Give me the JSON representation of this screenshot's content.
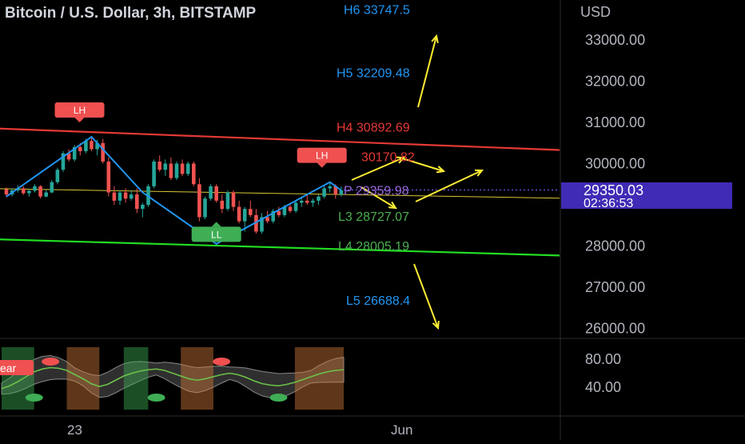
{
  "header": {
    "title": "Bitcoin / U.S. Dollar, 3h, BITSTAMP"
  },
  "price_scale": {
    "currency": "USD",
    "ticks": [
      "33000.00",
      "32000.00",
      "31000.00",
      "30000.00",
      "28000.00",
      "27000.00",
      "26000.00"
    ],
    "tick_values": [
      33000,
      32000,
      31000,
      30000,
      28000,
      27000,
      26000
    ],
    "current_price": "29350.03",
    "countdown": "02:36:53"
  },
  "time_axis": {
    "labels": [
      "23",
      "Jun"
    ]
  },
  "colors": {
    "background": "#000000",
    "up_candle": "#26a69a",
    "down_candle": "#ef5350",
    "resistance_line": "#e53935",
    "support_line": "#22dd22",
    "pivot_line": "#d9c637",
    "zigzag": "#2196f3",
    "projection_arrows": "#ffee33",
    "level_label_blue": "#2196f3",
    "level_label_red": "#e53935",
    "level_label_green": "#4caf50",
    "price_badge": "#3f2bb5"
  },
  "chart_data": {
    "type": "candlestick",
    "title": "Bitcoin / U.S. Dollar, 3h, BITSTAMP",
    "ylim": [
      25800,
      33800
    ],
    "y_ticks": [
      26000,
      27000,
      28000,
      30000,
      31000,
      32000,
      33000
    ],
    "current_price": 29350.03,
    "candles": [
      [
        29380,
        29420,
        29180,
        29250
      ],
      [
        29250,
        29400,
        29200,
        29350
      ],
      [
        29350,
        29480,
        29300,
        29400
      ],
      [
        29400,
        29450,
        29240,
        29280
      ],
      [
        29280,
        29380,
        29200,
        29340
      ],
      [
        29340,
        29500,
        29300,
        29450
      ],
      [
        29450,
        29480,
        29150,
        29200
      ],
      [
        29200,
        29360,
        29180,
        29300
      ],
      [
        29300,
        29600,
        29280,
        29550
      ],
      [
        29550,
        29900,
        29500,
        29850
      ],
      [
        29850,
        30300,
        29800,
        30250
      ],
      [
        30250,
        30350,
        30050,
        30100
      ],
      [
        30100,
        30450,
        30050,
        30400
      ],
      [
        30400,
        30500,
        30200,
        30300
      ],
      [
        30300,
        30600,
        30250,
        30550
      ],
      [
        30550,
        30650,
        30300,
        30350
      ],
      [
        30350,
        30580,
        30200,
        30500
      ],
      [
        30500,
        30600,
        30000,
        30050
      ],
      [
        30050,
        30150,
        29200,
        29300
      ],
      [
        29300,
        29450,
        29000,
        29100
      ],
      [
        29100,
        29350,
        29000,
        29300
      ],
      [
        29300,
        29400,
        29050,
        29150
      ],
      [
        29150,
        29350,
        29100,
        29250
      ],
      [
        29250,
        29400,
        28800,
        28900
      ],
      [
        28900,
        29050,
        28700,
        29000
      ],
      [
        29000,
        29500,
        28950,
        29450
      ],
      [
        29450,
        30100,
        29400,
        30050
      ],
      [
        30050,
        30200,
        29800,
        29850
      ],
      [
        29850,
        30100,
        29700,
        30000
      ],
      [
        30000,
        30150,
        29600,
        29650
      ],
      [
        29650,
        30050,
        29600,
        30000
      ],
      [
        30000,
        30100,
        29700,
        29750
      ],
      [
        29750,
        30050,
        29700,
        30000
      ],
      [
        30000,
        30050,
        29450,
        29500
      ],
      [
        29500,
        29650,
        28600,
        28700
      ],
      [
        28700,
        29200,
        28650,
        29150
      ],
      [
        29150,
        29500,
        29100,
        29450
      ],
      [
        29450,
        29500,
        29050,
        29100
      ],
      [
        29100,
        29250,
        28800,
        28900
      ],
      [
        28900,
        29350,
        28850,
        29300
      ],
      [
        29300,
        29350,
        28850,
        28950
      ],
      [
        28950,
        29100,
        28550,
        28600
      ],
      [
        28600,
        28950,
        28350,
        28900
      ],
      [
        28900,
        29100,
        28700,
        28750
      ],
      [
        28750,
        28900,
        28300,
        28350
      ],
      [
        28350,
        28800,
        28300,
        28700
      ],
      [
        28700,
        28850,
        28550,
        28600
      ],
      [
        28600,
        28900,
        28550,
        28850
      ],
      [
        28850,
        28950,
        28700,
        28750
      ],
      [
        28750,
        29000,
        28700,
        28950
      ],
      [
        28950,
        29050,
        28800,
        28850
      ],
      [
        28850,
        29100,
        28800,
        29050
      ],
      [
        29050,
        29200,
        28950,
        29100
      ],
      [
        29100,
        29250,
        29000,
        29050
      ],
      [
        29050,
        29150,
        28950,
        29100
      ],
      [
        29100,
        29250,
        29000,
        29200
      ],
      [
        29200,
        29450,
        29150,
        29400
      ],
      [
        29400,
        29550,
        29300,
        29450
      ],
      [
        29450,
        29500,
        29150,
        29250
      ],
      [
        29250,
        29450,
        29200,
        29350
      ]
    ],
    "pivot_levels": [
      {
        "name": "H6",
        "label": "H6 33747.5",
        "value": 33747.5,
        "color": "#2196f3"
      },
      {
        "name": "H5",
        "label": "H5 32209.48",
        "value": 32209.48,
        "color": "#2196f3"
      },
      {
        "name": "H4",
        "label": "H4 30892.69",
        "value": 30892.69,
        "color": "#e53935"
      },
      {
        "name": "H3",
        "label": "30170.82",
        "value": 30170.82,
        "color": "#e53935"
      },
      {
        "name": "P",
        "label": "P 29359.98",
        "value": 29359.98,
        "color": "#9c6ade"
      },
      {
        "name": "L3",
        "label": "L3 28727.07",
        "value": 28727.07,
        "color": "#4caf50"
      },
      {
        "name": "L4",
        "label": "L4 28005.19",
        "value": 28005.19,
        "color": "#4caf50"
      },
      {
        "name": "L5",
        "label": "L5 26688.4",
        "value": 26688.4,
        "color": "#2196f3"
      }
    ],
    "swing_labels": [
      {
        "text": "LH",
        "kind": "high",
        "candle": 15
      },
      {
        "text": "LH",
        "kind": "high",
        "candle": 57
      },
      {
        "text": "LL",
        "kind": "low",
        "candle": 37
      }
    ],
    "zigzag_points": [
      {
        "candle": 0,
        "price": 29200
      },
      {
        "candle": 15,
        "price": 30650
      },
      {
        "candle": 24,
        "price": 29300
      },
      {
        "candle": 37,
        "price": 28050
      },
      {
        "candle": 57,
        "price": 29550
      },
      {
        "candle": 59,
        "price": 29350
      }
    ],
    "trend_lines": [
      {
        "name": "resistance",
        "from": 30850,
        "to": 30330
      },
      {
        "name": "support",
        "from": 28160,
        "to": 27770
      },
      {
        "name": "pivot",
        "from": 29390,
        "to": 29160
      }
    ]
  },
  "oscillator": {
    "ticks": [
      "80.00",
      "40.00"
    ],
    "tick_values": [
      80,
      40
    ],
    "badge": "ear",
    "values": [
      38,
      42,
      48,
      55,
      62,
      66,
      68,
      67,
      64,
      58,
      52,
      45,
      41,
      44,
      50,
      56,
      60,
      63,
      65,
      66,
      64,
      60,
      56,
      52,
      50,
      52,
      55,
      58,
      60,
      58,
      54,
      49,
      45,
      43,
      42,
      44,
      47,
      51,
      55,
      59,
      62,
      64,
      65
    ]
  }
}
